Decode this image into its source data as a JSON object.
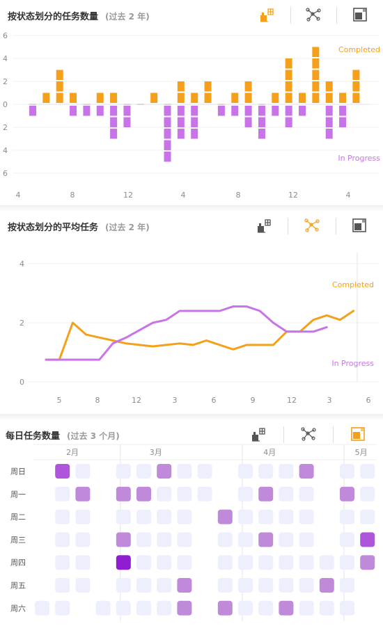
{
  "colors": {
    "completed": "#F5A01A",
    "in_progress": "#C973E8",
    "heat_empty": "#EEEFFC",
    "heat_light": "#BF8AD9",
    "heat_mid": "#AE55DC",
    "heat_dark": "#8E1ECF",
    "tool_active": "#F5A01A",
    "tool_inactive": "#555555"
  },
  "panel1": {
    "title": "按状态划分的任务数量",
    "subtitle": "(过去 2 年)",
    "tools": [
      {
        "icon": "bar-chart-icon",
        "active": true
      },
      {
        "icon": "network-icon",
        "active": false
      },
      {
        "icon": "heatmap-icon",
        "active": false
      }
    ]
  },
  "panel2": {
    "title": "按状态划分的平均任务",
    "subtitle": "(过去 2 年)",
    "tools": [
      {
        "icon": "bar-chart-icon",
        "active": false
      },
      {
        "icon": "network-icon",
        "active": true
      },
      {
        "icon": "heatmap-icon",
        "active": false
      }
    ]
  },
  "panel3": {
    "title": "每日任务数量",
    "subtitle": "(过去 3 个月)",
    "tools": [
      {
        "icon": "bar-chart-icon",
        "active": false
      },
      {
        "icon": "network-icon",
        "active": false
      },
      {
        "icon": "heatmap-icon",
        "active": true
      }
    ]
  },
  "chart_data": [
    {
      "type": "bar",
      "title": "按状态划分的任务数量",
      "subtitle": "(过去 2 年)",
      "y_tick_labels": [
        "6",
        "4",
        "2",
        "0",
        "2",
        "4",
        "6"
      ],
      "x_tick_labels": [
        "4",
        "8",
        "12",
        "4",
        "8",
        "12",
        "4"
      ],
      "ylim": [
        -6,
        6
      ],
      "series": [
        {
          "name": "Completed",
          "values": [
            0,
            1,
            3,
            1,
            0,
            1,
            1,
            0,
            0,
            1,
            0,
            2,
            1,
            2,
            0,
            1,
            2,
            0,
            1,
            4,
            1,
            5,
            2,
            1,
            3
          ]
        },
        {
          "name": "In Progress",
          "values": [
            1,
            0,
            0,
            1,
            1,
            1,
            3,
            2,
            0,
            0,
            5,
            3,
            3,
            0,
            1,
            1,
            2,
            3,
            1,
            2,
            1,
            0,
            3,
            2,
            0
          ]
        }
      ]
    },
    {
      "type": "line",
      "title": "按状态划分的平均任务",
      "subtitle": "(过去 2 年)",
      "y_tick_labels": [
        "4",
        "2",
        "0"
      ],
      "x_tick_labels": [
        "5",
        "8",
        "12",
        "3",
        "6",
        "9",
        "12",
        "3",
        "6"
      ],
      "ylim": [
        0,
        4
      ],
      "x_range": [
        0,
        25
      ],
      "series": [
        {
          "name": "Completed",
          "x": [
            0,
            1,
            2,
            3,
            4,
            5,
            6,
            7,
            8,
            9,
            10,
            11,
            12,
            13,
            14,
            15,
            16,
            17,
            18,
            19,
            20,
            21,
            22,
            23,
            24
          ],
          "values": [
            0.75,
            0.75,
            2.0,
            1.6,
            1.5,
            1.4,
            1.3,
            1.25,
            1.2,
            1.25,
            1.3,
            1.25,
            1.4,
            1.25,
            1.1,
            1.25,
            1.25,
            1.25,
            1.7,
            1.7,
            2.1,
            2.25,
            2.1,
            2.4,
            null
          ]
        },
        {
          "name": "In Progress",
          "x": [
            0,
            1,
            2,
            3,
            4,
            5,
            6,
            7,
            8,
            9,
            10,
            11,
            12,
            13,
            14,
            15,
            16,
            17,
            18,
            19,
            20,
            21,
            22,
            23,
            24
          ],
          "values": [
            0.75,
            0.75,
            0.75,
            0.75,
            0.75,
            1.3,
            1.5,
            1.75,
            2.0,
            2.1,
            2.4,
            2.4,
            2.4,
            2.4,
            2.55,
            2.55,
            2.4,
            2.0,
            1.7,
            1.7,
            1.7,
            1.85,
            null,
            null,
            null
          ]
        }
      ]
    },
    {
      "type": "heatmap",
      "title": "每日任务数量",
      "subtitle": "(过去 3 个月)",
      "months": [
        {
          "label": "2月",
          "start": 1
        },
        {
          "label": "3月",
          "start": 4
        },
        {
          "label": "4月",
          "start": 10
        },
        {
          "label": "5月",
          "start": 15
        }
      ],
      "row_labels": [
        "周日",
        "周一",
        "周二",
        "周三",
        "周四",
        "周五",
        "周六"
      ],
      "columns": 17,
      "cells": [
        [
          null,
          2,
          0,
          null,
          0,
          0,
          1,
          0,
          0,
          null,
          0,
          0,
          0,
          1,
          null,
          0,
          0
        ],
        [
          null,
          0,
          1,
          null,
          1,
          1,
          0,
          0,
          0,
          null,
          0,
          1,
          0,
          0,
          null,
          1,
          0
        ],
        [
          null,
          0,
          0,
          null,
          0,
          0,
          0,
          0,
          null,
          1,
          0,
          0,
          0,
          0,
          null,
          0,
          0
        ],
        [
          null,
          0,
          0,
          null,
          1,
          0,
          0,
          0,
          null,
          0,
          0,
          1,
          0,
          0,
          null,
          0,
          2
        ],
        [
          null,
          0,
          0,
          null,
          3,
          0,
          0,
          0,
          null,
          0,
          0,
          0,
          0,
          0,
          0,
          0,
          1
        ],
        [
          null,
          0,
          0,
          null,
          0,
          0,
          0,
          1,
          null,
          0,
          0,
          0,
          0,
          0,
          1,
          0,
          null
        ],
        [
          0,
          0,
          null,
          0,
          0,
          0,
          0,
          1,
          null,
          1,
          0,
          0,
          1,
          0,
          0,
          0,
          null
        ]
      ]
    }
  ]
}
